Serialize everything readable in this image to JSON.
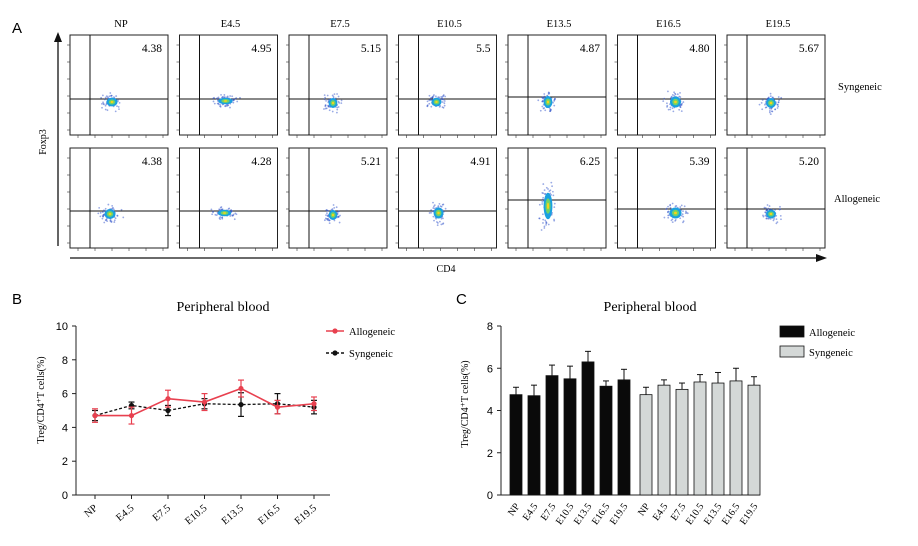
{
  "panel_labels": {
    "a": "A",
    "b": "B",
    "c": "C"
  },
  "flow": {
    "conditions": [
      "NP",
      "E4.5",
      "E7.5",
      "E10.5",
      "E13.5",
      "E16.5",
      "E19.5"
    ],
    "row_labels": [
      "Syngeneic",
      "Allogeneic"
    ],
    "y_axis_label": "Foxp3",
    "x_axis_label": "CD4",
    "syngeneic_values": [
      "4.38",
      "4.95",
      "5.15",
      "5.5",
      "4.87",
      "4.80",
      "5.67"
    ],
    "allogeneic_values": [
      "4.38",
      "4.28",
      "5.21",
      "4.91",
      "6.25",
      "5.39",
      "5.20"
    ]
  },
  "chart_data": [
    {
      "type": "line",
      "title": "Peripheral blood",
      "ylabel": "Treg/CD4⁺T cells(%)",
      "xlabel": "",
      "ylim": [
        0,
        10
      ],
      "yticks": [
        0,
        2,
        4,
        6,
        8,
        10
      ],
      "categories": [
        "NP",
        "E4.5",
        "E7.5",
        "E10.5",
        "E13.5",
        "E16.5",
        "E19.5"
      ],
      "legend_position": "top-right",
      "series": [
        {
          "name": "Allogeneic",
          "color": "#e8404f",
          "style": "solid",
          "values": [
            4.7,
            4.7,
            5.7,
            5.5,
            6.3,
            5.2,
            5.4
          ],
          "errors": [
            0.4,
            0.5,
            0.5,
            0.5,
            0.5,
            0.4,
            0.4
          ]
        },
        {
          "name": "Syngeneic",
          "color": "#111111",
          "style": "dashed",
          "values": [
            4.7,
            5.3,
            5.0,
            5.4,
            5.35,
            5.4,
            5.2
          ],
          "errors": [
            0.3,
            0.2,
            0.3,
            0.3,
            0.7,
            0.6,
            0.4
          ]
        }
      ]
    },
    {
      "type": "bar",
      "title": "Peripheral blood",
      "ylabel": "Treg/CD4⁺T cells(%)",
      "xlabel": "",
      "ylim": [
        0,
        8
      ],
      "yticks": [
        0,
        2,
        4,
        6,
        8
      ],
      "categories": [
        "NP",
        "E4.5",
        "E7.5",
        "E10.5",
        "E13.5",
        "E16.5",
        "E19.5"
      ],
      "legend_position": "top-right",
      "series": [
        {
          "name": "Allogeneic",
          "color": "#0a0a0a",
          "values": [
            4.75,
            4.7,
            5.65,
            5.5,
            6.3,
            5.15,
            5.45
          ],
          "errors": [
            0.35,
            0.5,
            0.5,
            0.6,
            0.5,
            0.25,
            0.5
          ]
        },
        {
          "name": "Syngeneic",
          "color": "#d4d8d7",
          "values": [
            4.75,
            5.2,
            5.0,
            5.35,
            5.3,
            5.4,
            5.2
          ],
          "errors": [
            0.35,
            0.25,
            0.3,
            0.35,
            0.5,
            0.6,
            0.4
          ]
        }
      ]
    }
  ]
}
